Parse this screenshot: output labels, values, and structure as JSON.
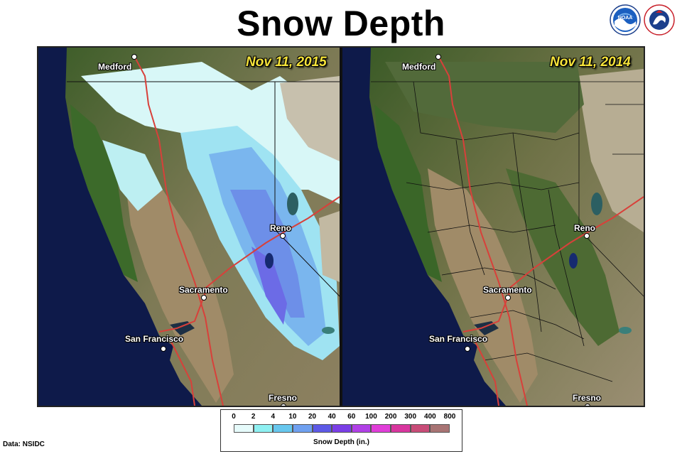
{
  "title": "Snow Depth",
  "source": "Data: NSIDC",
  "logos": [
    "noaa-logo",
    "national-weather-service-logo"
  ],
  "panels": [
    {
      "date": "Nov 11, 2015",
      "cities": [
        "Medford",
        "Reno",
        "Sacramento",
        "San Francisco",
        "Fresno"
      ]
    },
    {
      "date": "Nov 11, 2014",
      "cities": [
        "Medford",
        "Reno",
        "Sacramento",
        "San Francisco",
        "Fresno"
      ]
    }
  ],
  "legend": {
    "title": "Snow Depth (in.)",
    "ticks": [
      "0",
      "2",
      "4",
      "10",
      "20",
      "40",
      "60",
      "100",
      "200",
      "300",
      "400",
      "800"
    ],
    "colors": [
      "#e6fbfb",
      "#8ef0f2",
      "#67c7ee",
      "#6fa0f0",
      "#5d59e6",
      "#7a3ee6",
      "#b040e6",
      "#e03ed8",
      "#d8369e",
      "#c84c78",
      "#a87474"
    ]
  },
  "colors": {
    "ocean": "#0e1a4a",
    "roads": "#d8403a",
    "label_yellow": "#f5e33a"
  }
}
